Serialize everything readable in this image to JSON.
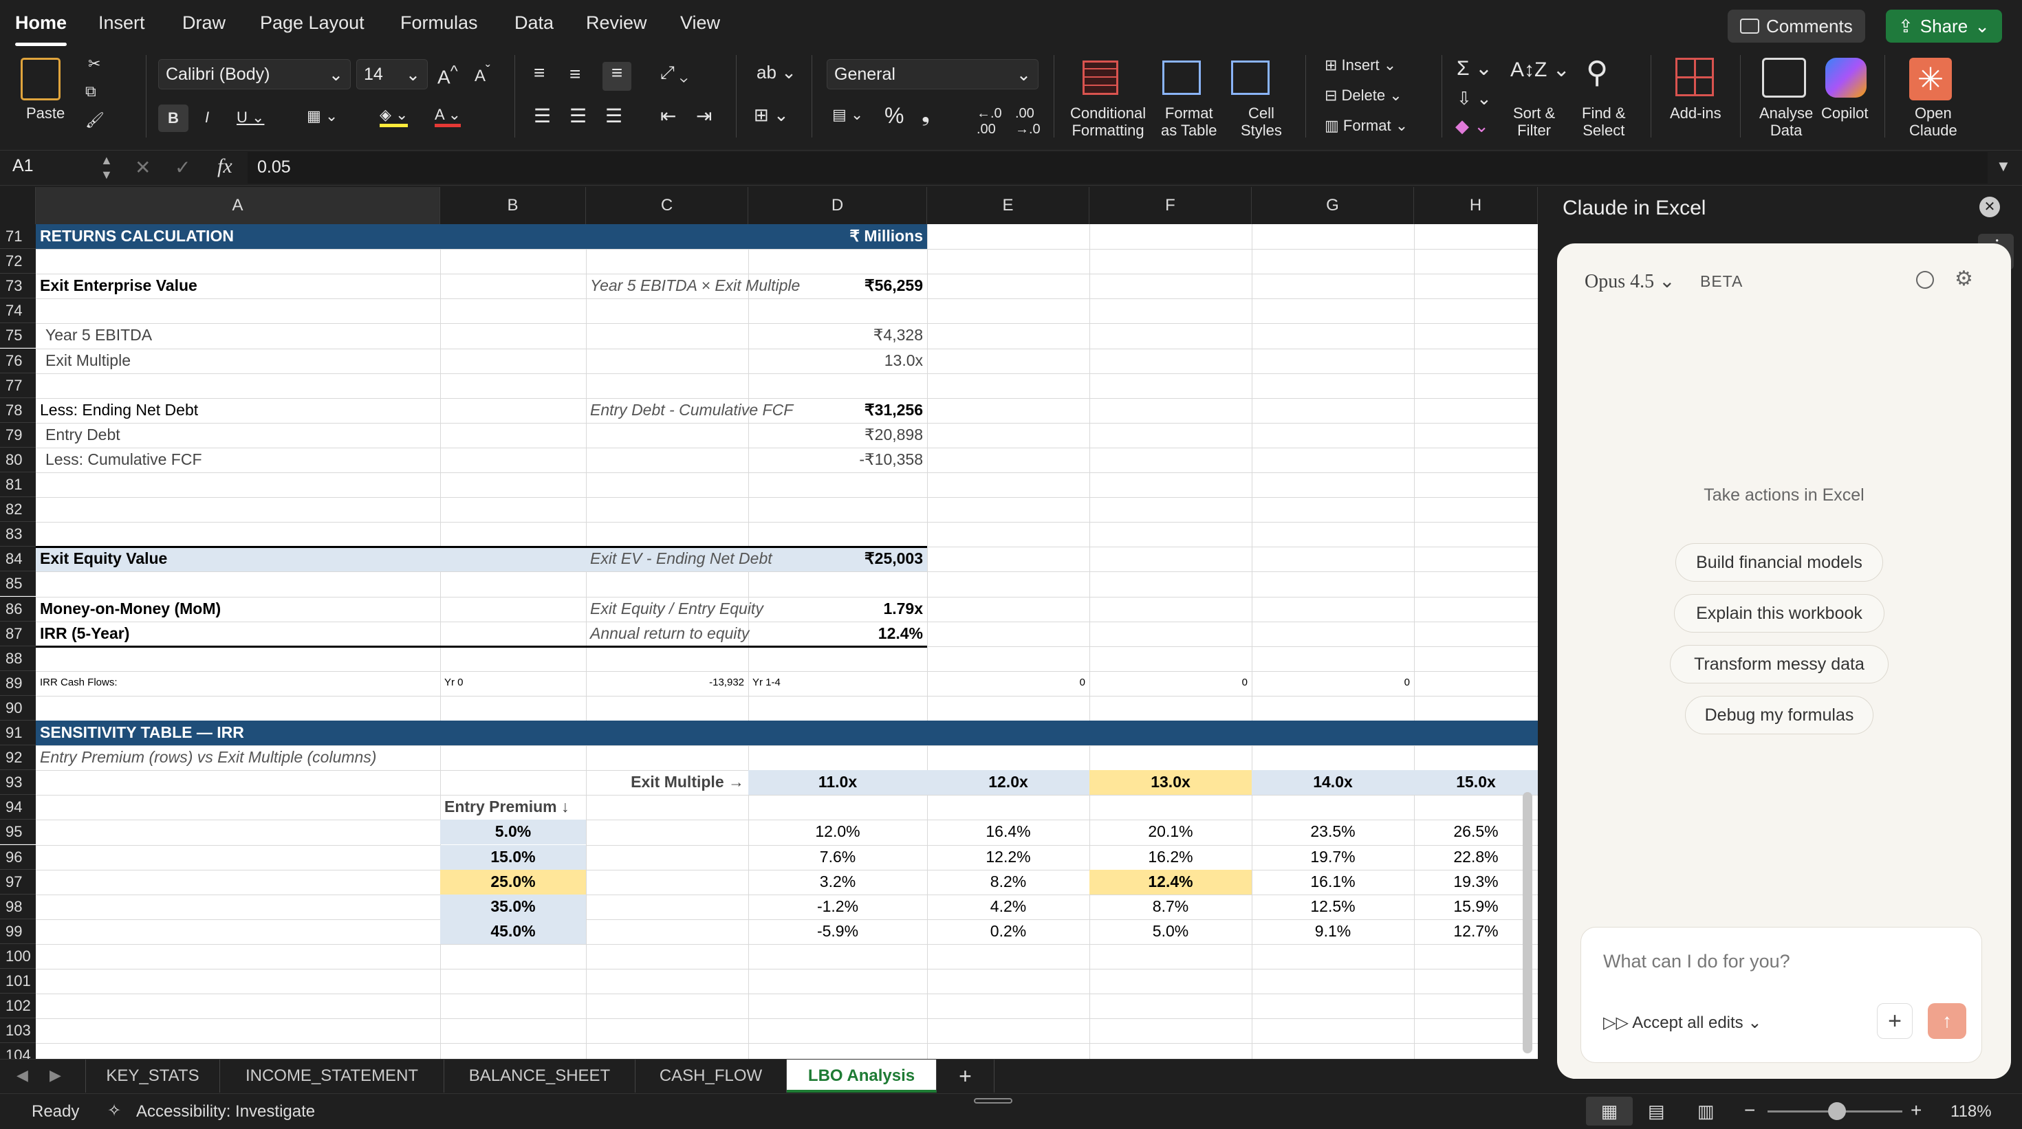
{
  "tabs": [
    "Home",
    "Insert",
    "Draw",
    "Page Layout",
    "Formulas",
    "Data",
    "Review",
    "View"
  ],
  "top_buttons": {
    "comments": "Comments",
    "share": "Share"
  },
  "ribbon": {
    "paste": "Paste",
    "font_name": "Calibri (Body)",
    "font_size": "14",
    "number_format": "General",
    "conditional": [
      "Conditional",
      "Formatting"
    ],
    "format_table": [
      "Format",
      "as Table"
    ],
    "cell_styles": [
      "Cell",
      "Styles"
    ],
    "insert": "Insert",
    "delete": "Delete",
    "format": "Format",
    "sort_filter": [
      "Sort &",
      "Filter"
    ],
    "find_select": [
      "Find &",
      "Select"
    ],
    "addins": "Add-ins",
    "analyse": [
      "Analyse",
      "Data"
    ],
    "copilot": "Copilot",
    "open_claude": [
      "Open",
      "Claude"
    ]
  },
  "formula_bar": {
    "name_box": "A1",
    "fx": "fx",
    "value": "0.05"
  },
  "columns": [
    "A",
    "B",
    "C",
    "D",
    "E",
    "F",
    "G",
    "H"
  ],
  "rows": [
    "71",
    "72",
    "73",
    "74",
    "75",
    "76",
    "77",
    "78",
    "79",
    "80",
    "81",
    "82",
    "83",
    "84",
    "85",
    "86",
    "87",
    "88",
    "89",
    "90",
    "91",
    "92",
    "93",
    "94",
    "95",
    "96",
    "97",
    "98",
    "99",
    "100",
    "101",
    "102",
    "103",
    "104"
  ],
  "cells": {
    "r71a": "RETURNS CALCULATION",
    "r71d": "₹ Millions",
    "r73a": "Exit Enterprise Value",
    "r73c": "Year 5 EBITDA × Exit Multiple",
    "r73d": "₹56,259",
    "r75a": "Year 5 EBITDA",
    "r75d": "₹4,328",
    "r76a": "Exit Multiple",
    "r76d": "13.0x",
    "r78a": "Less: Ending Net Debt",
    "r78c": "Entry Debt - Cumulative FCF",
    "r78d": "₹31,256",
    "r79a": "Entry Debt",
    "r79d": "₹20,898",
    "r80a": "Less: Cumulative FCF",
    "r80d": "-₹10,358",
    "r84a": "Exit Equity Value",
    "r84c": "Exit EV - Ending Net Debt",
    "r84d": "₹25,003",
    "r86a": "Money-on-Money (MoM)",
    "r86c": "Exit Equity / Entry Equity",
    "r86d": "1.79x",
    "r87a": "IRR (5-Year)",
    "r87c": "Annual return to equity",
    "r87d": "12.4%",
    "r89a": "IRR Cash Flows:",
    "r89b": "Yr 0",
    "r89c": "-13,932",
    "r89d": "Yr 1-4",
    "r89e": "0",
    "r89f": "0",
    "r89g": "0",
    "r91a": "SENSITIVITY TABLE — IRR",
    "r92a": "Entry Premium (rows) vs Exit Multiple (columns)",
    "r93c": "Exit Multiple →",
    "r94b": "Entry Premium ↓"
  },
  "sensitivity": {
    "exit_multiples": [
      "11.0x",
      "12.0x",
      "13.0x",
      "14.0x",
      "15.0x"
    ],
    "premiums": [
      "5.0%",
      "15.0%",
      "25.0%",
      "35.0%",
      "45.0%"
    ],
    "values": [
      [
        "12.0%",
        "16.4%",
        "20.1%",
        "23.5%",
        "26.5%"
      ],
      [
        "7.6%",
        "12.2%",
        "16.2%",
        "19.7%",
        "22.8%"
      ],
      [
        "3.2%",
        "8.2%",
        "12.4%",
        "16.1%",
        "19.3%"
      ],
      [
        "-1.2%",
        "4.2%",
        "8.7%",
        "12.5%",
        "15.9%"
      ],
      [
        "-5.9%",
        "0.2%",
        "5.0%",
        "9.1%",
        "12.7%"
      ]
    ]
  },
  "sheet_tabs": [
    "KEY_STATS",
    "INCOME_STATEMENT",
    "BALANCE_SHEET",
    "CASH_FLOW",
    "LBO Analysis"
  ],
  "status": {
    "ready": "Ready",
    "accessibility": "Accessibility: Investigate",
    "zoom": "118%"
  },
  "panel": {
    "title": "Claude in Excel",
    "model": "Opus 4.5",
    "beta": "BETA",
    "subtitle": "Take actions in Excel",
    "suggestions": [
      "Build financial models",
      "Explain this workbook",
      "Transform messy data",
      "Debug my formulas"
    ],
    "input_placeholder": "What can I do for you?",
    "accept": "Accept all edits"
  },
  "colors": {
    "header_blue": "#1f4e79",
    "light_blue": "#dce6f1",
    "highlight": "#ffe699",
    "share_green": "#1f7a3c"
  }
}
